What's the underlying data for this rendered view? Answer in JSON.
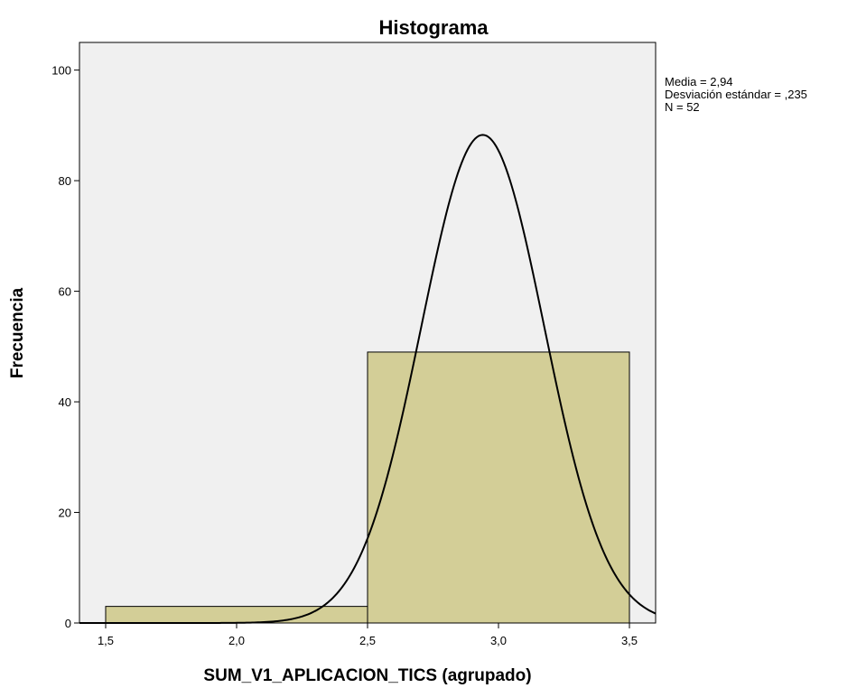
{
  "chart_data": {
    "type": "bar",
    "title": "Histograma",
    "xlabel": "SUM_V1_APLICACION_TICS (agrupado)",
    "ylabel": "Frecuencia",
    "xlim": [
      1.4,
      3.6
    ],
    "ylim": [
      0,
      105
    ],
    "x_ticks": [
      1.5,
      2.0,
      2.5,
      3.0,
      3.5
    ],
    "x_tick_labels": [
      "1,5",
      "2,0",
      "2,5",
      "3,0",
      "3,5"
    ],
    "y_ticks": [
      0,
      20,
      40,
      60,
      80,
      100
    ],
    "y_tick_labels": [
      "0",
      "20",
      "40",
      "60",
      "80",
      "100"
    ],
    "bins": [
      {
        "start": 1.5,
        "end": 2.5,
        "count": 3
      },
      {
        "start": 2.5,
        "end": 3.5,
        "count": 49
      }
    ],
    "normal_curve": {
      "mean": 2.94,
      "sd": 0.235,
      "n": 52,
      "bin_width": 1.0
    },
    "stats": {
      "mean_label": "Media = 2,94",
      "sd_label": "Desviación estándar = ,235",
      "n_label": "N = 52"
    },
    "colors": {
      "plot_background": "#f0f0f0",
      "bar_fill": "#d3ce97",
      "bar_stroke": "#000000",
      "curve": "#000000"
    },
    "grid": false
  }
}
